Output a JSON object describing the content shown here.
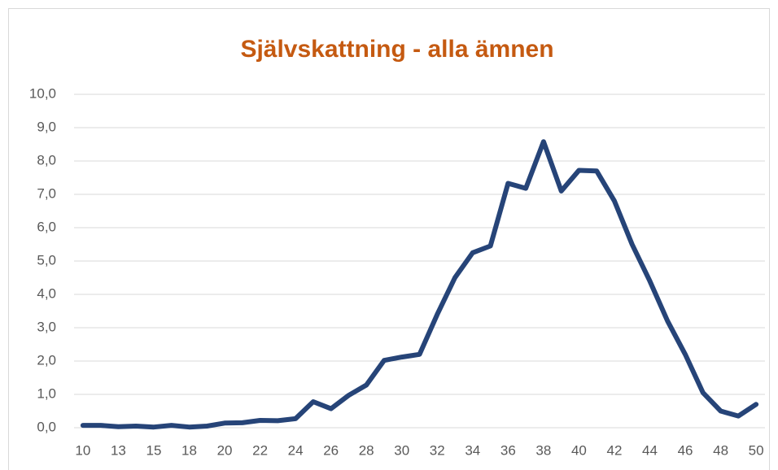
{
  "chart_data": {
    "type": "line",
    "title": "Självskattning - alla ämnen",
    "categories": [
      "10",
      null,
      "13",
      null,
      "15",
      null,
      "18",
      null,
      "20",
      null,
      "22",
      null,
      "24",
      null,
      "26",
      null,
      "28",
      null,
      "30",
      null,
      "32",
      null,
      "34",
      null,
      "36",
      null,
      "38",
      null,
      "40",
      null,
      "42",
      null,
      "44",
      null,
      "46",
      null,
      "48",
      null,
      "50"
    ],
    "series": [
      {
        "name": "Självskattning",
        "color": "#264478",
        "values": [
          0.07,
          0.07,
          0.03,
          0.05,
          0.02,
          0.07,
          0.02,
          0.05,
          0.14,
          0.15,
          0.22,
          0.21,
          0.27,
          0.78,
          0.57,
          0.97,
          1.28,
          2.02,
          2.12,
          2.2,
          3.4,
          4.5,
          5.25,
          5.45,
          7.33,
          7.18,
          8.58,
          7.1,
          7.72,
          7.7,
          6.8,
          5.5,
          4.4,
          3.2,
          2.2,
          1.05,
          0.5,
          0.35,
          0.7
        ]
      }
    ],
    "ylim": [
      0,
      10
    ],
    "yticks": [
      {
        "value": 0,
        "label": "0,0"
      },
      {
        "value": 1,
        "label": "1,0"
      },
      {
        "value": 2,
        "label": "2,0"
      },
      {
        "value": 3,
        "label": "3,0"
      },
      {
        "value": 4,
        "label": "4,0"
      },
      {
        "value": 5,
        "label": "5,0"
      },
      {
        "value": 6,
        "label": "6,0"
      },
      {
        "value": 7,
        "label": "7,0"
      },
      {
        "value": 8,
        "label": "8,0"
      },
      {
        "value": 9,
        "label": "9,0"
      },
      {
        "value": 10,
        "label": "10,0"
      }
    ],
    "grid": true
  }
}
